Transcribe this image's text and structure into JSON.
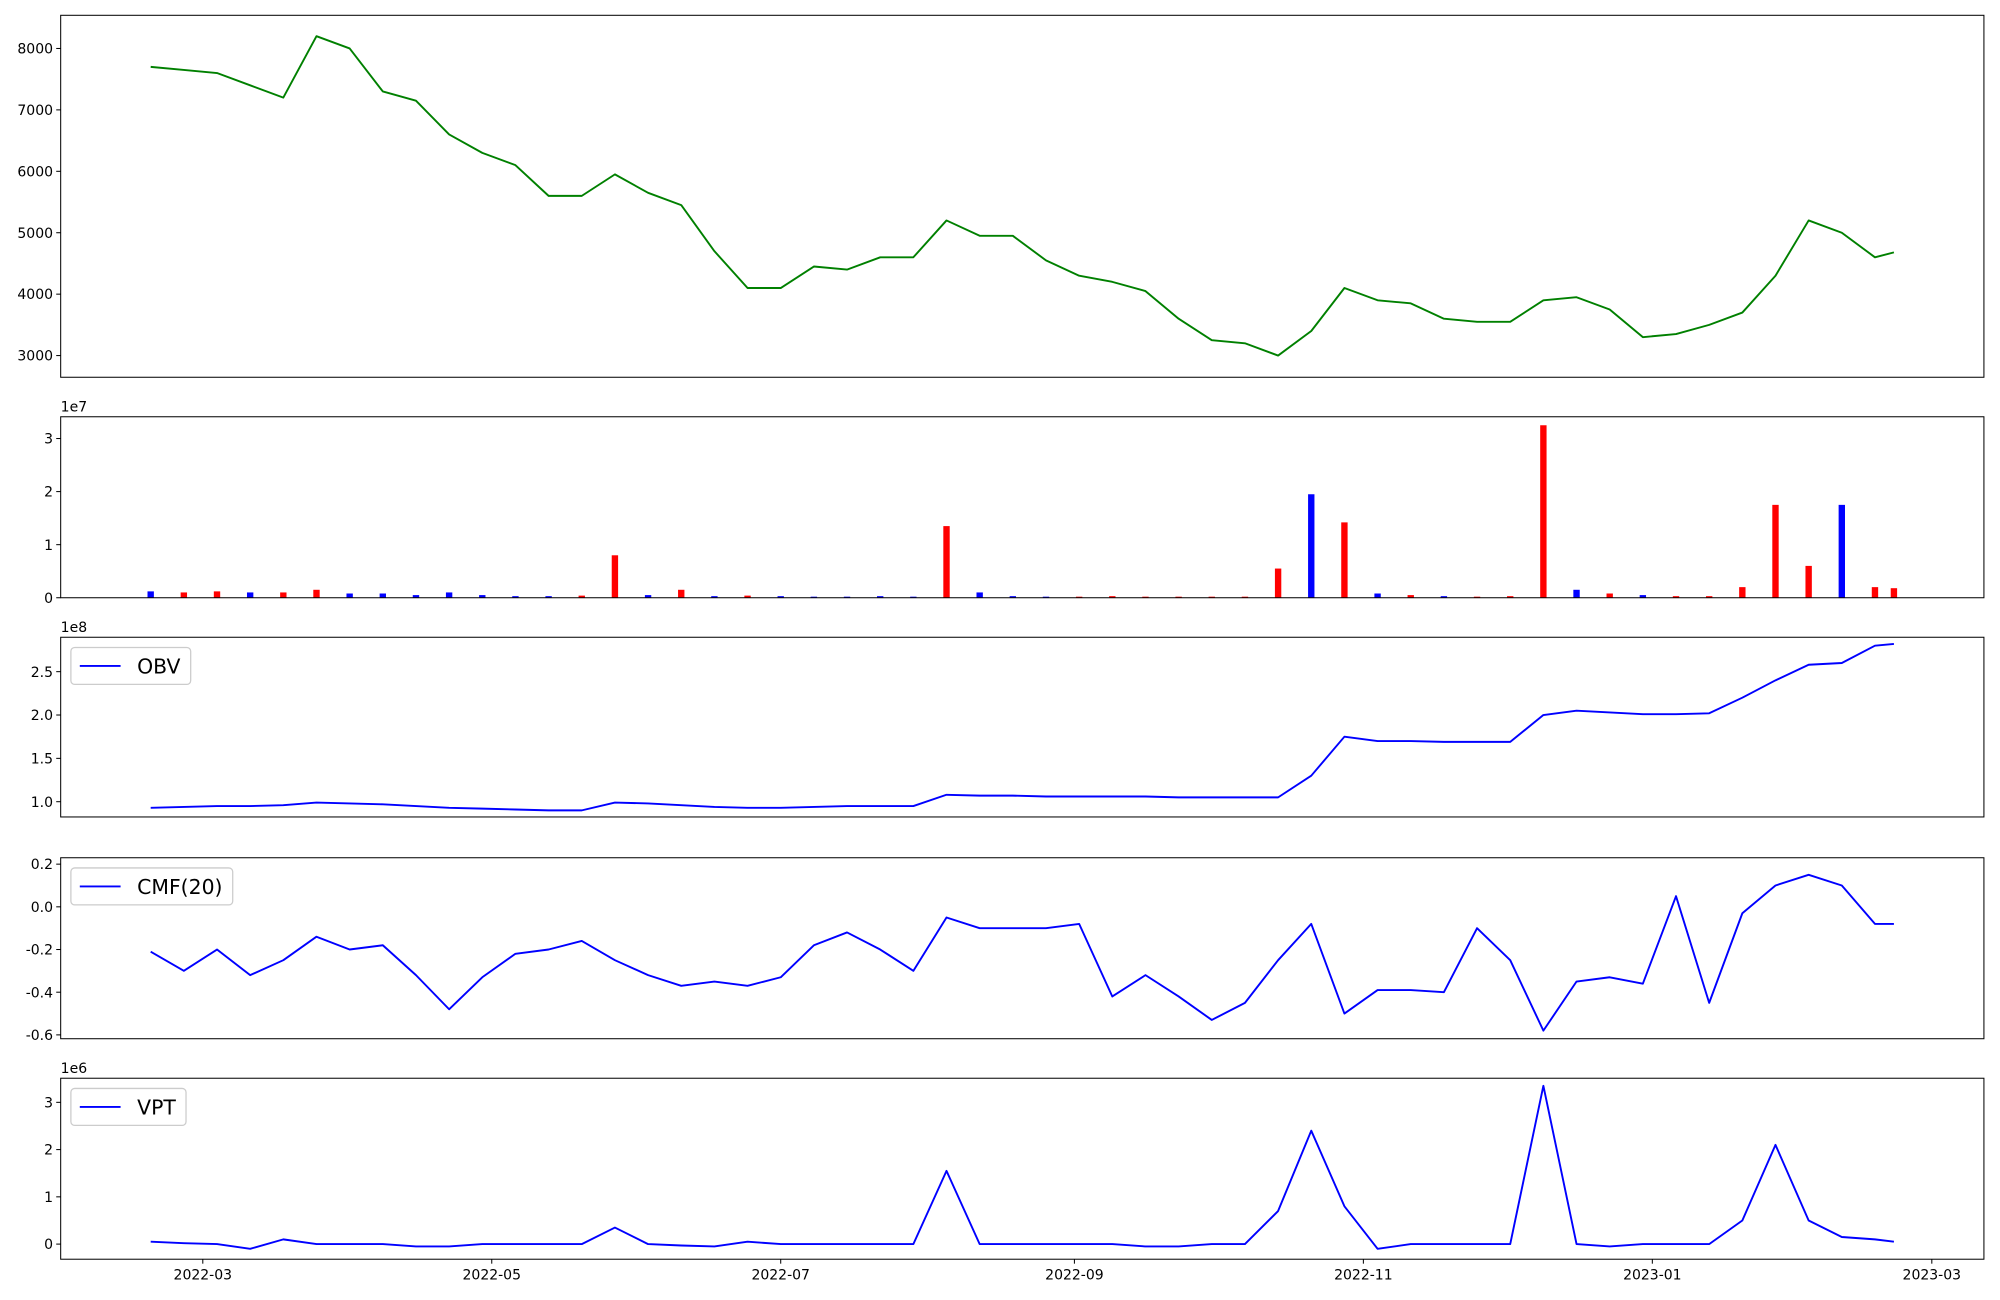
{
  "chart_data": [
    {
      "type": "line",
      "x": [
        "2022-02-18",
        "2022-02-25",
        "2022-03-04",
        "2022-03-11",
        "2022-03-18",
        "2022-03-25",
        "2022-04-01",
        "2022-04-08",
        "2022-04-15",
        "2022-04-22",
        "2022-04-29",
        "2022-05-06",
        "2022-05-13",
        "2022-05-20",
        "2022-05-27",
        "2022-06-03",
        "2022-06-10",
        "2022-06-17",
        "2022-06-24",
        "2022-07-01",
        "2022-07-08",
        "2022-07-15",
        "2022-07-22",
        "2022-07-29",
        "2022-08-05",
        "2022-08-12",
        "2022-08-19",
        "2022-08-26",
        "2022-09-02",
        "2022-09-09",
        "2022-09-16",
        "2022-09-23",
        "2022-09-30",
        "2022-10-07",
        "2022-10-14",
        "2022-10-21",
        "2022-10-28",
        "2022-11-04",
        "2022-11-11",
        "2022-11-18",
        "2022-11-25",
        "2022-12-02",
        "2022-12-09",
        "2022-12-16",
        "2022-12-23",
        "2022-12-30",
        "2023-01-06",
        "2023-01-13",
        "2023-01-20",
        "2023-01-27",
        "2023-02-03",
        "2023-02-10",
        "2023-02-17",
        "2023-02-21"
      ],
      "series": [
        {
          "color": "#008000",
          "values": [
            7700,
            7650,
            7600,
            7400,
            7200,
            8200,
            8000,
            7300,
            7150,
            6600,
            6300,
            6100,
            5600,
            5600,
            5950,
            5650,
            5450,
            4700,
            4100,
            4100,
            4450,
            4400,
            4600,
            4600,
            5200,
            4950,
            4950,
            4550,
            4300,
            4200,
            4050,
            3600,
            3250,
            3200,
            3000,
            3400,
            4100,
            3900,
            3850,
            3600,
            3550,
            3550,
            3900,
            3950,
            3750,
            3300,
            3350,
            3500,
            3700,
            4300,
            5200,
            5000,
            4600,
            4680
          ]
        }
      ],
      "xlim": [
        "2022-01-30",
        "2023-03-12"
      ],
      "ylim": [
        2647,
        8540
      ],
      "yticks": [
        3000,
        4000,
        5000,
        6000,
        7000,
        8000
      ]
    },
    {
      "type": "bar",
      "offset_label": "1e7",
      "x": [
        "2022-02-18",
        "2022-02-25",
        "2022-03-04",
        "2022-03-11",
        "2022-03-18",
        "2022-03-25",
        "2022-04-01",
        "2022-04-08",
        "2022-04-15",
        "2022-04-22",
        "2022-04-29",
        "2022-05-06",
        "2022-05-13",
        "2022-05-20",
        "2022-05-27",
        "2022-06-03",
        "2022-06-10",
        "2022-06-17",
        "2022-06-24",
        "2022-07-01",
        "2022-07-08",
        "2022-07-15",
        "2022-07-22",
        "2022-07-29",
        "2022-08-05",
        "2022-08-12",
        "2022-08-19",
        "2022-08-26",
        "2022-09-02",
        "2022-09-09",
        "2022-09-16",
        "2022-09-23",
        "2022-09-30",
        "2022-10-07",
        "2022-10-14",
        "2022-10-21",
        "2022-10-28",
        "2022-11-04",
        "2022-11-11",
        "2022-11-18",
        "2022-11-25",
        "2022-12-02",
        "2022-12-09",
        "2022-12-16",
        "2022-12-23",
        "2022-12-30",
        "2023-01-06",
        "2023-01-13",
        "2023-01-20",
        "2023-01-27",
        "2023-02-03",
        "2023-02-10",
        "2023-02-17",
        "2023-02-21"
      ],
      "series": [
        {
          "values": [
            0.12,
            0.1,
            0.12,
            0.1,
            0.1,
            0.15,
            0.08,
            0.08,
            0.05,
            0.1,
            0.05,
            0.03,
            0.03,
            0.04,
            0.8,
            0.05,
            0.15,
            0.03,
            0.04,
            0.03,
            0.02,
            0.02,
            0.03,
            0.02,
            1.35,
            0.1,
            0.03,
            0.02,
            0.02,
            0.03,
            0.02,
            0.02,
            0.02,
            0.02,
            0.55,
            1.95,
            1.42,
            0.08,
            0.05,
            0.03,
            0.02,
            0.03,
            3.25,
            0.15,
            0.08,
            0.05,
            0.03,
            0.03,
            0.2,
            1.75,
            0.6,
            1.75,
            0.2,
            0.18
          ],
          "colors": [
            "#0000ff",
            "#ff0000",
            "#ff0000",
            "#0000ff",
            "#ff0000",
            "#ff0000",
            "#0000ff",
            "#0000ff",
            "#0000ff",
            "#0000ff",
            "#0000ff",
            "#0000ff",
            "#0000ff",
            "#ff0000",
            "#ff0000",
            "#0000ff",
            "#ff0000",
            "#0000ff",
            "#ff0000",
            "#0000ff",
            "#0000ff",
            "#0000ff",
            "#0000ff",
            "#0000ff",
            "#ff0000",
            "#0000ff",
            "#0000ff",
            "#0000ff",
            "#ff0000",
            "#ff0000",
            "#ff0000",
            "#ff0000",
            "#ff0000",
            "#ff0000",
            "#ff0000",
            "#0000ff",
            "#ff0000",
            "#0000ff",
            "#ff0000",
            "#0000ff",
            "#ff0000",
            "#ff0000",
            "#ff0000",
            "#0000ff",
            "#ff0000",
            "#0000ff",
            "#ff0000",
            "#ff0000",
            "#ff0000",
            "#ff0000",
            "#ff0000",
            "#0000ff",
            "#ff0000",
            "#ff0000"
          ]
        }
      ],
      "xlim": [
        "2022-01-30",
        "2023-03-12"
      ],
      "ylim": [
        0,
        3.41
      ],
      "yticks": [
        0,
        1,
        2,
        3
      ]
    },
    {
      "type": "line",
      "offset_label": "1e8",
      "legend": "upper left",
      "x": [
        "2022-02-18",
        "2022-02-25",
        "2022-03-04",
        "2022-03-11",
        "2022-03-18",
        "2022-03-25",
        "2022-04-01",
        "2022-04-08",
        "2022-04-15",
        "2022-04-22",
        "2022-04-29",
        "2022-05-06",
        "2022-05-13",
        "2022-05-20",
        "2022-05-27",
        "2022-06-03",
        "2022-06-10",
        "2022-06-17",
        "2022-06-24",
        "2022-07-01",
        "2022-07-08",
        "2022-07-15",
        "2022-07-22",
        "2022-07-29",
        "2022-08-05",
        "2022-08-12",
        "2022-08-19",
        "2022-08-26",
        "2022-09-02",
        "2022-09-09",
        "2022-09-16",
        "2022-09-23",
        "2022-09-30",
        "2022-10-07",
        "2022-10-14",
        "2022-10-21",
        "2022-10-28",
        "2022-11-04",
        "2022-11-11",
        "2022-11-18",
        "2022-11-25",
        "2022-12-02",
        "2022-12-09",
        "2022-12-16",
        "2022-12-23",
        "2022-12-30",
        "2023-01-06",
        "2023-01-13",
        "2023-01-20",
        "2023-01-27",
        "2023-02-03",
        "2023-02-10",
        "2023-02-17",
        "2023-02-21"
      ],
      "series": [
        {
          "name": "OBV",
          "color": "#0000ff",
          "values": [
            0.93,
            0.94,
            0.95,
            0.95,
            0.96,
            0.99,
            0.98,
            0.97,
            0.95,
            0.93,
            0.92,
            0.91,
            0.9,
            0.9,
            0.99,
            0.98,
            0.96,
            0.94,
            0.93,
            0.93,
            0.94,
            0.95,
            0.95,
            0.95,
            1.08,
            1.07,
            1.07,
            1.06,
            1.06,
            1.06,
            1.06,
            1.05,
            1.05,
            1.05,
            1.05,
            1.3,
            1.75,
            1.7,
            1.7,
            1.69,
            1.69,
            1.69,
            2.0,
            2.05,
            2.03,
            2.01,
            2.01,
            2.02,
            2.2,
            2.4,
            2.58,
            2.6,
            2.8,
            2.82
          ]
        }
      ],
      "xlim": [
        "2022-01-30",
        "2023-03-12"
      ],
      "ylim": [
        0.824,
        2.897
      ],
      "yticks": [
        {
          "value": 1,
          "label": "1.0"
        },
        1.5,
        {
          "value": 2,
          "label": "2.0"
        },
        2.5
      ]
    },
    {
      "type": "line",
      "legend": "upper left",
      "x": [
        "2022-02-18",
        "2022-02-25",
        "2022-03-04",
        "2022-03-11",
        "2022-03-18",
        "2022-03-25",
        "2022-04-01",
        "2022-04-08",
        "2022-04-15",
        "2022-04-22",
        "2022-04-29",
        "2022-05-06",
        "2022-05-13",
        "2022-05-20",
        "2022-05-27",
        "2022-06-03",
        "2022-06-10",
        "2022-06-17",
        "2022-06-24",
        "2022-07-01",
        "2022-07-08",
        "2022-07-15",
        "2022-07-22",
        "2022-07-29",
        "2022-08-05",
        "2022-08-12",
        "2022-08-19",
        "2022-08-26",
        "2022-09-02",
        "2022-09-09",
        "2022-09-16",
        "2022-09-23",
        "2022-09-30",
        "2022-10-07",
        "2022-10-14",
        "2022-10-21",
        "2022-10-28",
        "2022-11-04",
        "2022-11-11",
        "2022-11-18",
        "2022-11-25",
        "2022-12-02",
        "2022-12-09",
        "2022-12-16",
        "2022-12-23",
        "2022-12-30",
        "2023-01-06",
        "2023-01-13",
        "2023-01-20",
        "2023-01-27",
        "2023-02-03",
        "2023-02-10",
        "2023-02-17",
        "2023-02-21"
      ],
      "series": [
        {
          "name": "CMF(20)",
          "color": "#0000ff",
          "values": [
            -0.21,
            -0.3,
            -0.2,
            -0.32,
            -0.25,
            -0.14,
            -0.2,
            -0.18,
            -0.32,
            -0.48,
            -0.33,
            -0.22,
            -0.2,
            -0.16,
            -0.25,
            -0.32,
            -0.37,
            -0.35,
            -0.37,
            -0.33,
            -0.18,
            -0.12,
            -0.2,
            -0.3,
            -0.05,
            -0.1,
            -0.1,
            -0.1,
            -0.08,
            -0.42,
            -0.32,
            -0.42,
            -0.53,
            -0.45,
            -0.25,
            -0.08,
            -0.5,
            -0.39,
            -0.39,
            -0.4,
            -0.1,
            -0.25,
            -0.58,
            -0.35,
            -0.33,
            -0.36,
            0.05,
            -0.45,
            -0.03,
            0.1,
            0.15,
            0.1,
            -0.08,
            -0.08
          ]
        }
      ],
      "xlim": [
        "2022-01-30",
        "2023-03-12"
      ],
      "ylim": [
        -0.618,
        0.23
      ],
      "yticks": [
        -0.6,
        -0.4,
        -0.2,
        {
          "value": 0,
          "label": "0.0"
        },
        0.2
      ]
    },
    {
      "type": "line",
      "offset_label": "1e6",
      "legend": "upper left",
      "x": [
        "2022-02-18",
        "2022-02-25",
        "2022-03-04",
        "2022-03-11",
        "2022-03-18",
        "2022-03-25",
        "2022-04-01",
        "2022-04-08",
        "2022-04-15",
        "2022-04-22",
        "2022-04-29",
        "2022-05-06",
        "2022-05-13",
        "2022-05-20",
        "2022-05-27",
        "2022-06-03",
        "2022-06-10",
        "2022-06-17",
        "2022-06-24",
        "2022-07-01",
        "2022-07-08",
        "2022-07-15",
        "2022-07-22",
        "2022-07-29",
        "2022-08-05",
        "2022-08-12",
        "2022-08-19",
        "2022-08-26",
        "2022-09-02",
        "2022-09-09",
        "2022-09-16",
        "2022-09-23",
        "2022-09-30",
        "2022-10-07",
        "2022-10-14",
        "2022-10-21",
        "2022-10-28",
        "2022-11-04",
        "2022-11-11",
        "2022-11-18",
        "2022-11-25",
        "2022-12-02",
        "2022-12-09",
        "2022-12-16",
        "2022-12-23",
        "2022-12-30",
        "2023-01-06",
        "2023-01-13",
        "2023-01-20",
        "2023-01-27",
        "2023-02-03",
        "2023-02-10",
        "2023-02-17",
        "2023-02-21"
      ],
      "series": [
        {
          "name": "VPT",
          "color": "#0000ff",
          "values": [
            0.05,
            0.02,
            0,
            -0.1,
            0.1,
            0,
            0,
            0,
            -0.05,
            -0.05,
            0,
            0,
            0,
            0,
            0.35,
            0,
            -0.03,
            -0.05,
            0.05,
            0,
            0,
            0,
            0,
            0,
            1.55,
            0,
            0,
            0,
            0,
            0,
            -0.05,
            -0.05,
            0,
            0,
            0.7,
            2.4,
            0.8,
            -0.1,
            0,
            0,
            0,
            0,
            3.35,
            0,
            -0.05,
            0,
            0,
            0,
            0.5,
            2.1,
            0.5,
            0.15,
            0.1,
            0.05
          ]
        }
      ],
      "xlim": [
        "2022-01-30",
        "2023-03-12"
      ],
      "ylim": [
        -0.32,
        3.51
      ],
      "yticks": [
        0,
        1,
        2,
        3
      ],
      "xticks": [
        {
          "value": "2022-03-01",
          "label": "2022-03"
        },
        {
          "value": "2022-05-01",
          "label": "2022-05"
        },
        {
          "value": "2022-07-01",
          "label": "2022-07"
        },
        {
          "value": "2022-09-01",
          "label": "2022-09"
        },
        {
          "value": "2022-11-01",
          "label": "2022-11"
        },
        {
          "value": "2023-01-01",
          "label": "2023-01"
        },
        {
          "value": "2023-03-01",
          "label": "2023-03"
        }
      ]
    }
  ]
}
